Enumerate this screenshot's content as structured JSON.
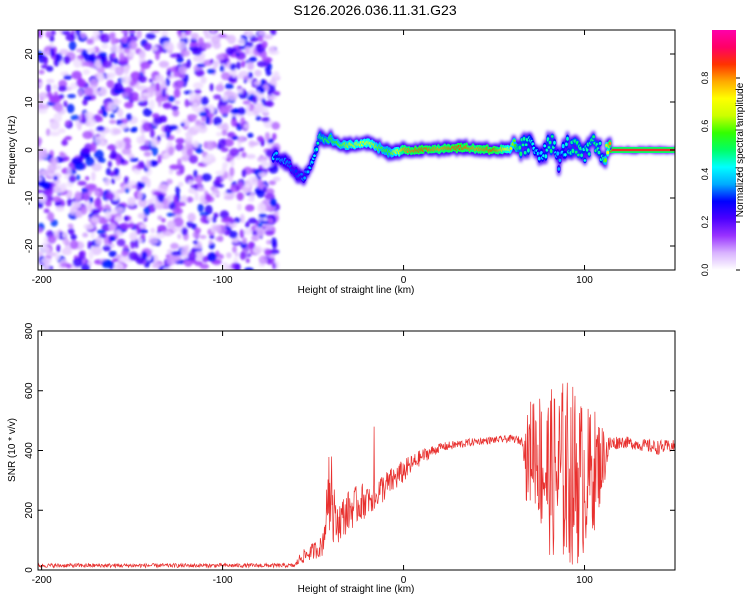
{
  "title": "S126.2026.036.11.31.G23",
  "colors": {
    "snr_line": "#e8302e",
    "axis": "#000000",
    "tone_core": "#e8302e"
  },
  "chart_data": [
    {
      "type": "heatmap",
      "name": "spectrogram",
      "xlabel": "Height of straight line (km)",
      "ylabel": "Frequency (Hz)",
      "xlim": [
        -202,
        150
      ],
      "ylim": [
        -25,
        25
      ],
      "xticks": [
        -200,
        -100,
        0,
        100
      ],
      "xtick_labels": [
        "-200",
        "-100",
        "0",
        "100"
      ],
      "yticks": [
        -20,
        -10,
        0,
        10,
        20
      ],
      "ytick_labels": [
        "-20",
        "-10",
        "0",
        "10",
        "20"
      ],
      "noise_region_x": [
        -202,
        -70
      ],
      "tone_track": [
        {
          "x": -72,
          "freq": -1,
          "amp": 0.4
        },
        {
          "x": -66,
          "freq": -2,
          "amp": 0.35
        },
        {
          "x": -60,
          "freq": -4.5,
          "amp": 0.3
        },
        {
          "x": -55,
          "freq": -5.5,
          "amp": 0.35
        },
        {
          "x": -50,
          "freq": -2,
          "amp": 0.4
        },
        {
          "x": -46,
          "freq": 3,
          "amp": 0.5
        },
        {
          "x": -40,
          "freq": 2,
          "amp": 0.55
        },
        {
          "x": -34,
          "freq": 1,
          "amp": 0.6
        },
        {
          "x": -28,
          "freq": 1,
          "amp": 0.65
        },
        {
          "x": -20,
          "freq": 1.5,
          "amp": 0.7
        },
        {
          "x": -14,
          "freq": 0.5,
          "amp": 0.6
        },
        {
          "x": -8,
          "freq": -0.5,
          "amp": 0.55
        },
        {
          "x": 0,
          "freq": 0,
          "amp": 0.8
        },
        {
          "x": 10,
          "freq": 0,
          "amp": 0.85
        },
        {
          "x": 20,
          "freq": 0.3,
          "amp": 0.8
        },
        {
          "x": 30,
          "freq": 0.5,
          "amp": 0.85
        },
        {
          "x": 40,
          "freq": 0.3,
          "amp": 0.8
        },
        {
          "x": 50,
          "freq": 0,
          "amp": 0.85
        },
        {
          "x": 58,
          "freq": 0,
          "amp": 0.7
        },
        {
          "x": 64,
          "freq": 0.5,
          "amp": 0.5
        },
        {
          "x": 70,
          "freq": 1,
          "amp": 0.45
        },
        {
          "x": 76,
          "freq": -0.5,
          "amp": 0.4
        },
        {
          "x": 82,
          "freq": 1.5,
          "amp": 0.5
        },
        {
          "x": 86,
          "freq": -2.5,
          "amp": 0.35
        },
        {
          "x": 90,
          "freq": 1,
          "amp": 0.45
        },
        {
          "x": 96,
          "freq": 0,
          "amp": 0.5
        },
        {
          "x": 100,
          "freq": -1.5,
          "amp": 0.45
        },
        {
          "x": 105,
          "freq": 1.5,
          "amp": 0.5
        },
        {
          "x": 110,
          "freq": -1,
          "amp": 0.45
        },
        {
          "x": 115,
          "freq": 0,
          "amp": 0.9
        },
        {
          "x": 130,
          "freq": 0,
          "amp": 0.95
        },
        {
          "x": 150,
          "freq": 0,
          "amp": 0.95
        }
      ],
      "colorbar": {
        "label": "Normalized spectral amplitude",
        "range": [
          0,
          1
        ],
        "ticks": [
          0.0,
          0.2,
          0.4,
          0.6,
          0.8
        ],
        "tick_labels": [
          "0.0",
          "0.2",
          "0.4",
          "0.6",
          "0.8"
        ],
        "colors": [
          "#ffffff",
          "#d9b3ff",
          "#9933ff",
          "#4b00ff",
          "#0000ff",
          "#00aaff",
          "#00ffff",
          "#00ff66",
          "#33ff00",
          "#ccff00",
          "#ffff00",
          "#ffaa00",
          "#ff3300",
          "#ff0066",
          "#ff00aa"
        ]
      }
    },
    {
      "type": "line",
      "name": "snr",
      "xlabel": "Height of straight line (km)",
      "ylabel": "SNR (10 * v/v)",
      "xlim": [
        -202,
        150
      ],
      "ylim": [
        0,
        800
      ],
      "xticks": [
        -200,
        -100,
        0,
        100
      ],
      "xtick_labels": [
        "-200",
        "-100",
        "0",
        "100"
      ],
      "yticks": [
        0,
        200,
        400,
        600,
        800
      ],
      "ytick_labels": [
        "0",
        "200",
        "400",
        "600",
        "800"
      ],
      "series": [
        {
          "name": "SNR",
          "envelope_x": [
            -202,
            -60,
            -57,
            -45,
            -41,
            -38,
            -30,
            -20,
            -10,
            0,
            10,
            20,
            30,
            40,
            50,
            60,
            66,
            68,
            72,
            78,
            84,
            90,
            96,
            100,
            106,
            110,
            114,
            120,
            130,
            140,
            150
          ],
          "envelope_mean": [
            15,
            15,
            40,
            80,
            250,
            150,
            200,
            240,
            280,
            330,
            380,
            410,
            420,
            430,
            435,
            440,
            430,
            360,
            430,
            330,
            320,
            330,
            310,
            300,
            340,
            370,
            420,
            430,
            420,
            410,
            415
          ],
          "envelope_spread": [
            7,
            7,
            20,
            35,
            120,
            70,
            70,
            60,
            50,
            40,
            25,
            15,
            15,
            12,
            12,
            12,
            15,
            150,
            200,
            260,
            300,
            320,
            300,
            250,
            200,
            120,
            30,
            20,
            20,
            25,
            20
          ]
        }
      ]
    }
  ]
}
